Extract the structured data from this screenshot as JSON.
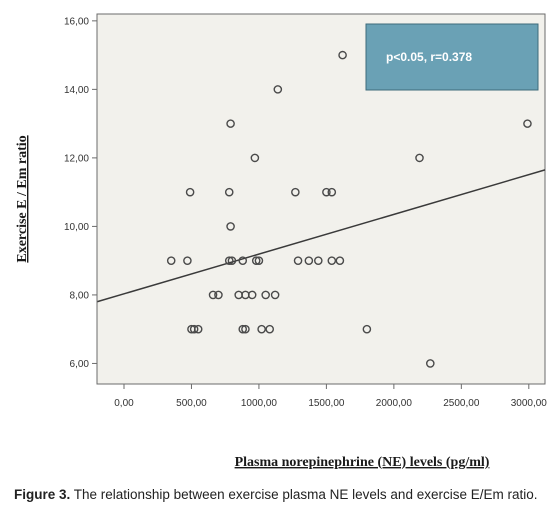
{
  "chart_data": {
    "type": "scatter",
    "xlabel": "Plasma norepinephrine (NE) levels (pg/ml)",
    "ylabel": "Exercise E / Em ratio",
    "xlim": [
      -200,
      3120
    ],
    "ylim": [
      5.4,
      16.2
    ],
    "x_ticks": [
      0,
      500,
      1000,
      1500,
      2000,
      2500,
      3000
    ],
    "x_tick_labels": [
      "0,00",
      "500,00",
      "1000,00",
      "1500,00",
      "2000,00",
      "2500,00",
      "3000,00"
    ],
    "y_ticks": [
      6,
      8,
      10,
      12,
      14,
      16
    ],
    "y_tick_labels": [
      "6,00",
      "8,00",
      "10,00",
      "12,00",
      "14,00",
      "16,00"
    ],
    "grid": false,
    "annotation": "p<0.05, r=0.378",
    "fit_line": {
      "x": [
        -200,
        3120
      ],
      "y": [
        7.8,
        11.65
      ]
    },
    "points": [
      {
        "x": 1620,
        "y": 15
      },
      {
        "x": 1140,
        "y": 14
      },
      {
        "x": 790,
        "y": 13
      },
      {
        "x": 2990,
        "y": 13
      },
      {
        "x": 970,
        "y": 12
      },
      {
        "x": 2190,
        "y": 12
      },
      {
        "x": 490,
        "y": 11
      },
      {
        "x": 780,
        "y": 11
      },
      {
        "x": 1270,
        "y": 11
      },
      {
        "x": 1500,
        "y": 11
      },
      {
        "x": 1540,
        "y": 11
      },
      {
        "x": 790,
        "y": 10
      },
      {
        "x": 350,
        "y": 9
      },
      {
        "x": 470,
        "y": 9
      },
      {
        "x": 780,
        "y": 9
      },
      {
        "x": 800,
        "y": 9
      },
      {
        "x": 880,
        "y": 9
      },
      {
        "x": 980,
        "y": 9
      },
      {
        "x": 1000,
        "y": 9
      },
      {
        "x": 1290,
        "y": 9
      },
      {
        "x": 1370,
        "y": 9
      },
      {
        "x": 1440,
        "y": 9
      },
      {
        "x": 1540,
        "y": 9
      },
      {
        "x": 1600,
        "y": 9
      },
      {
        "x": 660,
        "y": 8
      },
      {
        "x": 700,
        "y": 8
      },
      {
        "x": 850,
        "y": 8
      },
      {
        "x": 900,
        "y": 8
      },
      {
        "x": 950,
        "y": 8
      },
      {
        "x": 1050,
        "y": 8
      },
      {
        "x": 1120,
        "y": 8
      },
      {
        "x": 500,
        "y": 7
      },
      {
        "x": 520,
        "y": 7
      },
      {
        "x": 550,
        "y": 7
      },
      {
        "x": 880,
        "y": 7
      },
      {
        "x": 900,
        "y": 7
      },
      {
        "x": 1020,
        "y": 7
      },
      {
        "x": 1080,
        "y": 7
      },
      {
        "x": 1800,
        "y": 7
      },
      {
        "x": 2270,
        "y": 6
      }
    ]
  },
  "caption": {
    "label": "Figure 3.",
    "text": " The relationship between exercise plasma NE levels and exercise E/Em ratio."
  },
  "colors": {
    "plot_background": "#f2f1ec",
    "marker": "#4a4a4a",
    "fit_line": "#3a3a3a",
    "stat_box": "#6aa1b5",
    "stat_box_border": "#3d6a7a"
  }
}
